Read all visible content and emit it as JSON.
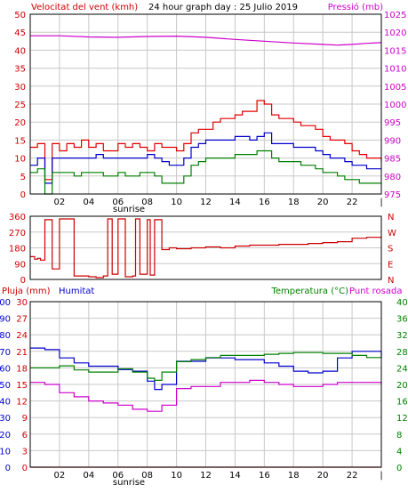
{
  "colors": {
    "wind": "#e00000",
    "gust": "#e00000",
    "wind_avg": "#0000cc",
    "wind_low": "#008000",
    "pressure": "#cc00cc",
    "direction": "#cc0000",
    "rain": "#cc0000",
    "humidity": "#0000cc",
    "temperature": "#008000",
    "dewpoint": "#cc00cc",
    "axis_left_top": "#cc0000",
    "axis_right_top": "#cc00cc",
    "axis_humidity": "#0000cc",
    "axis_rain": "#cc0000",
    "axis_temp": "#008000",
    "grid": "#c8c8c8"
  },
  "chart_data": [
    {
      "type": "line",
      "title": "24 hour graph day : 25 Julio 2019",
      "left_label": "Velocitat del vent (kmh)",
      "right_label": "Pressió (mb)",
      "x_tick_labels": [
        "02",
        "04",
        "06",
        "08",
        "10",
        "12",
        "14",
        "16",
        "18",
        "20",
        "22"
      ],
      "x_marker": "sunrise",
      "ylim_left": [
        0,
        50
      ],
      "y_ticks_left": [
        "0",
        "5",
        "10",
        "15",
        "20",
        "25",
        "30",
        "35",
        "40",
        "45",
        "50"
      ],
      "ylim_right": [
        975,
        1025
      ],
      "y_ticks_right": [
        "975",
        "980",
        "985",
        "990",
        "995",
        "1000",
        "1005",
        "1010",
        "1015",
        "1020",
        "1025"
      ],
      "grid": true,
      "series": [
        {
          "name": "gust",
          "axis": "left",
          "x": [
            0,
            0.5,
            1,
            1.5,
            2,
            2.5,
            3,
            3.5,
            4,
            4.5,
            5,
            5.5,
            6,
            6.5,
            7,
            7.5,
            8,
            8.5,
            9,
            9.5,
            10,
            10.5,
            11,
            11.5,
            12,
            12.5,
            13,
            13.5,
            14,
            14.5,
            15,
            15.5,
            16,
            16.5,
            17,
            17.5,
            18,
            18.5,
            19,
            19.5,
            20,
            20.5,
            21,
            21.5,
            22,
            22.5,
            23,
            23.5,
            24
          ],
          "values": [
            13,
            14,
            4,
            14,
            12,
            14,
            13,
            15,
            13,
            14,
            12,
            12,
            14,
            13,
            14,
            13,
            12,
            14,
            13,
            13,
            12,
            14,
            17,
            18,
            18,
            20,
            21,
            21,
            22,
            23,
            23,
            26,
            25,
            22,
            21,
            21,
            20,
            19,
            19,
            18,
            16,
            15,
            15,
            14,
            12,
            11,
            10,
            10,
            9
          ]
        },
        {
          "name": "wind_avg",
          "axis": "left",
          "x": [
            0,
            0.5,
            1,
            1.5,
            2,
            2.5,
            3,
            3.5,
            4,
            4.5,
            5,
            5.5,
            6,
            6.5,
            7,
            7.5,
            8,
            8.5,
            9,
            9.5,
            10,
            10.5,
            11,
            11.5,
            12,
            12.5,
            13,
            13.5,
            14,
            14.5,
            15,
            15.5,
            16,
            16.5,
            17,
            17.5,
            18,
            18.5,
            19,
            19.5,
            20,
            20.5,
            21,
            21.5,
            22,
            22.5,
            23,
            23.5,
            24
          ],
          "values": [
            8,
            10,
            3,
            10,
            10,
            10,
            10,
            10,
            10,
            11,
            10,
            10,
            10,
            10,
            10,
            10,
            11,
            10,
            9,
            8,
            8,
            10,
            13,
            14,
            15,
            15,
            15,
            15,
            16,
            16,
            15,
            16,
            17,
            14,
            14,
            14,
            13,
            13,
            13,
            12,
            11,
            10,
            10,
            9,
            8,
            8,
            7,
            7,
            7
          ]
        },
        {
          "name": "wind_low",
          "axis": "left",
          "x": [
            0,
            0.5,
            1,
            1.5,
            2,
            2.5,
            3,
            3.5,
            4,
            4.5,
            5,
            5.5,
            6,
            6.5,
            7,
            7.5,
            8,
            8.5,
            9,
            9.5,
            10,
            10.5,
            11,
            11.5,
            12,
            12.5,
            13,
            13.5,
            14,
            14.5,
            15,
            15.5,
            16,
            16.5,
            17,
            17.5,
            18,
            18.5,
            19,
            19.5,
            20,
            20.5,
            21,
            21.5,
            22,
            22.5,
            23,
            23.5,
            24
          ],
          "values": [
            6,
            7,
            0,
            6,
            6,
            6,
            5,
            6,
            6,
            6,
            5,
            5,
            6,
            5,
            5,
            6,
            6,
            5,
            3,
            3,
            3,
            5,
            8,
            9,
            10,
            10,
            10,
            10,
            11,
            11,
            11,
            12,
            12,
            10,
            9,
            9,
            9,
            8,
            8,
            7,
            6,
            6,
            5,
            4,
            4,
            3,
            3,
            3,
            3
          ]
        },
        {
          "name": "pressure",
          "axis": "right",
          "x": [
            0,
            2,
            4,
            6,
            8,
            10,
            12,
            14,
            16,
            18,
            20,
            21,
            22,
            23,
            24
          ],
          "values": [
            1019,
            1019,
            1018.7,
            1018.6,
            1018.8,
            1018.9,
            1018.6,
            1018,
            1017.5,
            1017,
            1016.6,
            1016.4,
            1016.6,
            1016.9,
            1017.1
          ]
        }
      ]
    },
    {
      "type": "scatter",
      "name": "wind direction",
      "y_ticks_left": [
        "0",
        "90",
        "180",
        "270",
        "360"
      ],
      "y_ticks_right": [
        "N",
        "E",
        "S",
        "W",
        "N"
      ],
      "ylim": [
        0,
        360
      ],
      "x": [
        0,
        0.3,
        0.5,
        0.7,
        1,
        1.5,
        2,
        3,
        4,
        4.5,
        5,
        5.3,
        5.6,
        6,
        6.5,
        7,
        7.2,
        7.5,
        8,
        8.2,
        8.5,
        8.8,
        9,
        9.5,
        10,
        11,
        12,
        13,
        14,
        15,
        16,
        17,
        18,
        19,
        20,
        21,
        22,
        23,
        24
      ],
      "values": [
        130,
        115,
        120,
        110,
        340,
        60,
        345,
        20,
        15,
        10,
        20,
        345,
        30,
        345,
        15,
        20,
        345,
        30,
        340,
        25,
        340,
        340,
        170,
        180,
        175,
        180,
        185,
        180,
        190,
        195,
        195,
        200,
        200,
        205,
        210,
        215,
        235,
        240,
        235
      ]
    },
    {
      "type": "line",
      "left_labels": [
        "Pluja (mm)",
        "Humitat"
      ],
      "right_labels": [
        "Temperatura (°C)",
        "Punt rosada"
      ],
      "y_ticks_rain": [
        "0",
        "10",
        "20",
        "30",
        "40",
        "50",
        "60",
        "70",
        "80",
        "90",
        "100"
      ],
      "y_ticks_humidity": [
        "0",
        "3",
        "6",
        "9",
        "12",
        "15",
        "18",
        "21",
        "24",
        "27",
        "30"
      ],
      "y_ticks_temp": [
        "0",
        "4",
        "8",
        "12",
        "16",
        "20",
        "24",
        "28",
        "32",
        "36",
        "40"
      ],
      "x_tick_labels": [
        "02",
        "04",
        "06",
        "08",
        "10",
        "12",
        "14",
        "16",
        "18",
        "20",
        "22"
      ],
      "x_marker": "sunrise",
      "ylim_humidity": [
        0,
        100
      ],
      "ylim_temp": [
        0,
        40
      ],
      "grid": true,
      "series": [
        {
          "name": "humidity",
          "axis": "humidity",
          "x": [
            0,
            1,
            2,
            3,
            4,
            5,
            6,
            7,
            8,
            8.5,
            9,
            10,
            11,
            12,
            13,
            14,
            15,
            16,
            17,
            18,
            19,
            20,
            21,
            22,
            23,
            24
          ],
          "values": [
            72,
            71,
            66,
            63,
            61,
            61,
            59,
            58,
            52,
            47,
            50,
            64,
            64,
            66,
            66,
            65,
            65,
            63,
            61,
            58,
            57,
            58,
            66,
            70,
            70,
            66
          ]
        },
        {
          "name": "temperature",
          "axis": "temp",
          "x": [
            0,
            1,
            2,
            3,
            4,
            5,
            6,
            7,
            8,
            8.5,
            9,
            10,
            11,
            12,
            13,
            14,
            15,
            16,
            17,
            18,
            19,
            20,
            21,
            22,
            23,
            24
          ],
          "values": [
            24,
            24,
            24.5,
            23.5,
            23,
            23,
            23.8,
            23,
            21.5,
            21,
            23,
            25.5,
            26,
            26.5,
            27,
            27,
            27,
            27.3,
            27.5,
            27.7,
            27.7,
            27.5,
            27.5,
            27,
            26.5,
            26.5
          ]
        },
        {
          "name": "dewpoint",
          "axis": "temp",
          "x": [
            0,
            1,
            2,
            3,
            4,
            5,
            6,
            7,
            8,
            8.5,
            9,
            10,
            11,
            12,
            13,
            14,
            15,
            16,
            17,
            18,
            19,
            20,
            21,
            22,
            23,
            24
          ],
          "values": [
            20.5,
            20,
            18,
            17,
            16,
            15.5,
            15,
            14,
            13.5,
            13.5,
            15,
            19,
            19.5,
            19.5,
            20.5,
            20.5,
            21,
            20.5,
            20,
            19.5,
            19.5,
            20,
            20.5,
            20.5,
            20.5,
            20
          ]
        },
        {
          "name": "rain",
          "axis": "humidity",
          "x": [
            0,
            24
          ],
          "values": [
            0,
            0
          ]
        }
      ]
    }
  ]
}
